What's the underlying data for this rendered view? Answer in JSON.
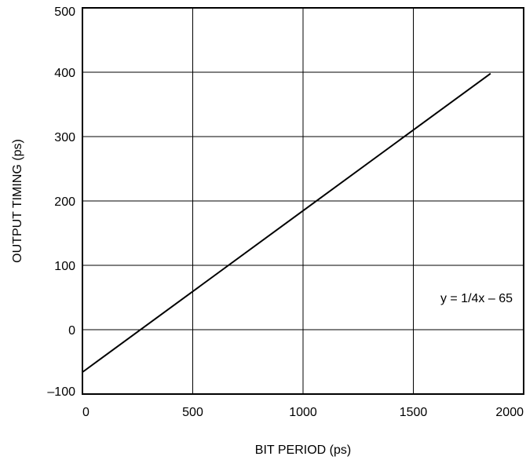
{
  "chart_data": {
    "type": "line",
    "xlabel": "BIT PERIOD (ps)",
    "ylabel": "OUTPUT TIMING (ps)",
    "xlim": [
      0,
      2000
    ],
    "ylim": [
      -100,
      500
    ],
    "xticks": [
      0,
      500,
      1000,
      1500,
      2000
    ],
    "xtick_labels": [
      "0",
      "500",
      "1000",
      "1500",
      "2000"
    ],
    "yticks": [
      -100,
      0,
      100,
      200,
      300,
      400,
      500
    ],
    "ytick_labels": [
      "–100",
      "0",
      "100",
      "200",
      "300",
      "400",
      "500"
    ],
    "grid": true,
    "series": [
      {
        "x": [
          0,
          1850
        ],
        "y": [
          -66,
          398
        ]
      }
    ],
    "annotations": [
      {
        "text": "y = 1/4x – 65"
      }
    ],
    "colors": {
      "line": "#000000",
      "grid": "#000000",
      "frame": "#000000"
    }
  }
}
